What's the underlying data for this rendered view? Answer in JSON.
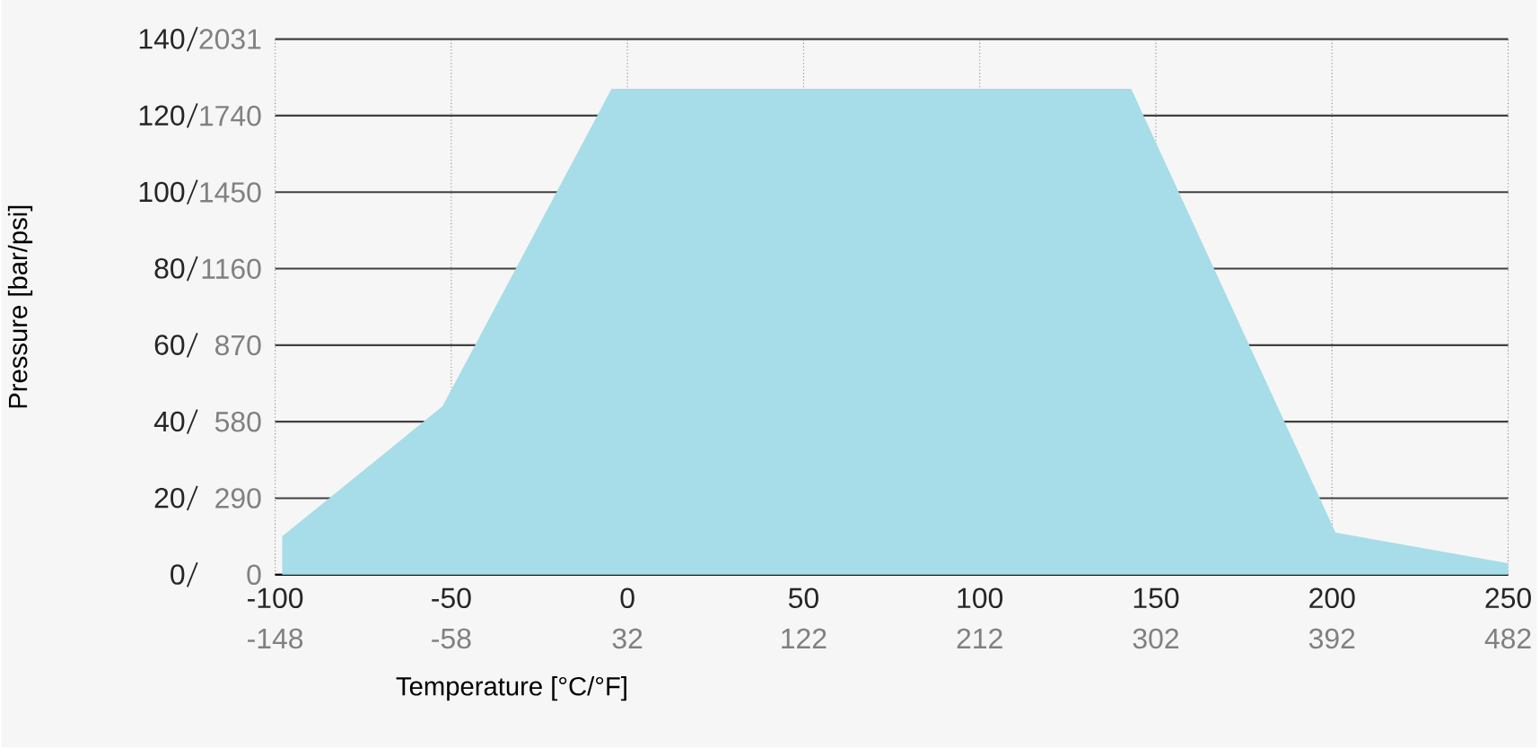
{
  "chart_data": {
    "type": "area",
    "xlabel": "Temperature [°C/°F]",
    "ylabel": "Pressure [bar/psi]",
    "x": [
      -98,
      -52.5,
      -4.5,
      143,
      201,
      250
    ],
    "values": [
      10,
      44,
      127,
      127,
      11,
      3
    ],
    "color": "#a6dde8",
    "xlim": [
      -100,
      250
    ],
    "xticks": [
      -100,
      -50,
      0,
      50,
      100,
      150,
      200,
      250
    ],
    "x2lim": [
      -148,
      482
    ],
    "x2ticks": [
      -148,
      -58,
      32,
      122,
      212,
      302,
      392,
      482
    ],
    "ylim": [
      0,
      140
    ],
    "yticks": [
      0,
      20,
      40,
      60,
      80,
      100,
      120,
      140
    ],
    "y2lim": [
      0,
      2031
    ],
    "y2ticks": [
      0,
      290,
      580,
      870,
      1160,
      1450,
      1740,
      2031
    ],
    "grid": true
  }
}
